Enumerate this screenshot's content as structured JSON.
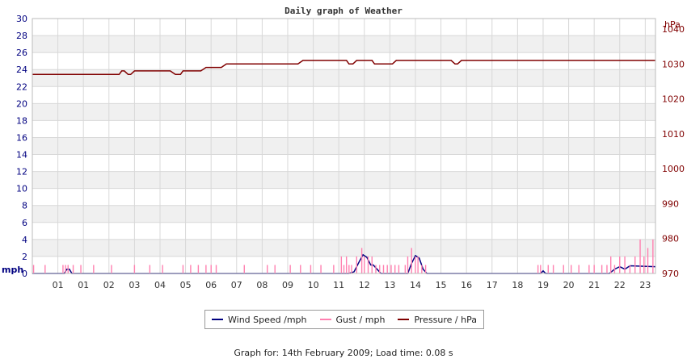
{
  "colors": {
    "wind": "#000080",
    "gust": "#ff80b0",
    "pressure": "#800000",
    "band": "#f0f0f0",
    "grid": "#d8d8d8"
  },
  "legend": {
    "wind_label": "Wind Speed /mph",
    "gust_label": "Gust / mph",
    "pressure_label": "Pressure / hPa"
  },
  "footer": {
    "text": "Graph for: 14th February 2009; Load time: 0.08 s"
  },
  "chart_data": {
    "type": "line",
    "title": "Daily graph of Weather",
    "y_left": {
      "unit": "mph",
      "range": [
        0,
        30
      ],
      "ticks": [
        "0",
        "2",
        "4",
        "6",
        "8",
        "10",
        "12",
        "14",
        "16",
        "18",
        "20",
        "22",
        "24",
        "26",
        "28",
        "30"
      ]
    },
    "y_right": {
      "unit": "hPa",
      "range": [
        970,
        1043
      ],
      "ticks": [
        "970",
        "980",
        "990",
        "1000",
        "1010",
        "1020",
        "1030",
        "1040"
      ]
    },
    "x_range": [
      0,
      24.4
    ],
    "x_tick_labels": [
      "01",
      "01",
      "02",
      "03",
      "04",
      "05",
      "06",
      "07",
      "08",
      "09",
      "10",
      "11",
      "12",
      "13",
      "14",
      "15",
      "16",
      "17",
      "18",
      "19",
      "20",
      "21",
      "22",
      "23"
    ],
    "grid": true,
    "legend_position": "bottom",
    "series": [
      {
        "name": "Pressure / hPa",
        "axis": "right",
        "x": [
          0,
          3.4,
          3.5,
          3.6,
          3.75,
          3.85,
          4.0,
          4.1,
          4.3,
          5.4,
          5.6,
          5.8,
          5.9,
          6.05,
          6.6,
          6.8,
          7.4,
          7.6,
          7.75,
          10.4,
          10.6,
          11.5,
          12.3,
          12.4,
          12.55,
          12.7,
          13.3,
          13.4,
          13.6,
          14.1,
          14.25,
          16.4,
          16.55,
          16.65,
          16.8,
          24.4
        ],
        "y": [
          1027,
          1027,
          1028,
          1028,
          1027,
          1027,
          1028,
          1028,
          1028,
          1028,
          1027,
          1027,
          1028,
          1028,
          1028,
          1029,
          1029,
          1030,
          1030,
          1030,
          1031,
          1031,
          1031,
          1030,
          1030,
          1031,
          1031,
          1030,
          1030,
          1030,
          1031,
          1031,
          1030,
          1030,
          1031,
          1031
        ]
      },
      {
        "name": "Wind Speed /mph",
        "axis": "left",
        "x": [
          0,
          1.25,
          1.35,
          1.45,
          1.55,
          12.4,
          12.6,
          12.8,
          12.95,
          13.1,
          13.25,
          13.35,
          13.5,
          13.65,
          14.7,
          14.85,
          15.0,
          15.15,
          15.3,
          15.45,
          19.9,
          20.0,
          20.1,
          22.6,
          22.8,
          23.0,
          23.2,
          23.4,
          24.4
        ],
        "y": [
          0,
          0,
          0.5,
          0.5,
          0,
          0,
          0.2,
          1.4,
          2.2,
          1.9,
          1.0,
          1.0,
          0.5,
          0,
          0,
          1.2,
          2.1,
          1.8,
          0.5,
          0,
          0,
          0.3,
          0,
          0,
          0.5,
          0.8,
          0.5,
          0.9,
          0.8
        ]
      },
      {
        "name": "Gust / mph",
        "axis": "left",
        "type": "spikes",
        "x": [
          0.05,
          0.5,
          1.2,
          1.3,
          1.4,
          1.6,
          1.9,
          2.4,
          3.1,
          4.0,
          4.6,
          5.1,
          5.9,
          6.2,
          6.5,
          6.8,
          7.0,
          7.2,
          8.3,
          9.2,
          9.5,
          10.1,
          10.5,
          10.9,
          11.3,
          11.8,
          12.1,
          12.2,
          12.3,
          12.4,
          12.5,
          12.7,
          12.9,
          13.0,
          13.15,
          13.3,
          13.45,
          13.6,
          13.75,
          13.9,
          14.05,
          14.2,
          14.35,
          14.6,
          14.7,
          14.85,
          15.0,
          15.1,
          15.25,
          15.4,
          19.8,
          19.9,
          20.2,
          20.4,
          20.8,
          21.1,
          21.4,
          21.8,
          22.0,
          22.3,
          22.5,
          22.65,
          22.8,
          23.0,
          23.2,
          23.4,
          23.6,
          23.8,
          23.95,
          24.1,
          24.3
        ],
        "y": [
          1,
          1,
          1,
          1,
          1,
          1,
          1,
          1,
          1,
          1,
          1,
          1,
          1,
          1,
          1,
          1,
          1,
          1,
          1,
          1,
          1,
          1,
          1,
          1,
          1,
          1,
          2,
          1,
          2,
          1,
          1,
          2,
          3,
          2,
          2,
          2,
          1,
          1,
          1,
          1,
          1,
          1,
          1,
          1,
          2,
          3,
          2,
          2,
          1,
          1,
          1,
          1,
          1,
          1,
          1,
          1,
          1,
          1,
          1,
          1,
          1,
          2,
          1,
          2,
          2,
          1,
          2,
          4,
          2,
          3,
          4
        ]
      }
    ]
  }
}
